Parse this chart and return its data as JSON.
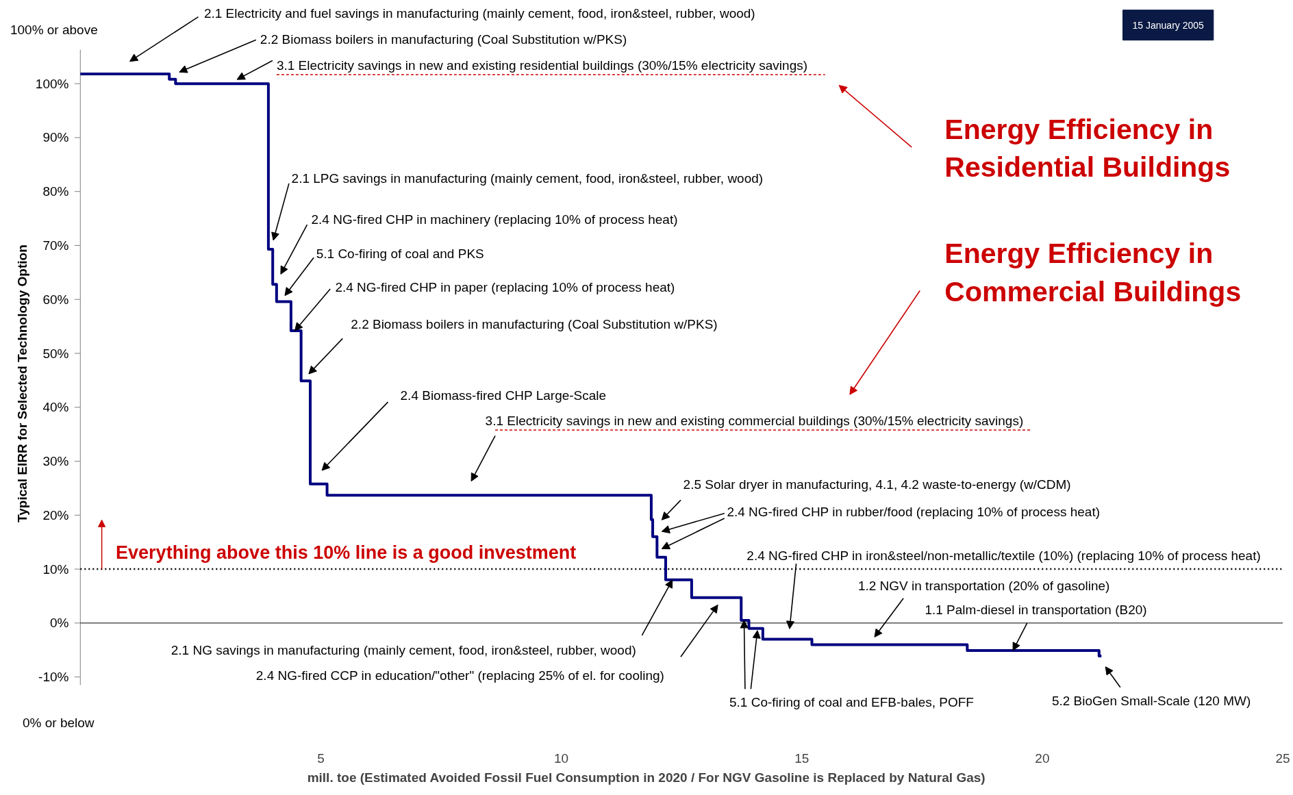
{
  "chart_data": {
    "type": "step",
    "xlabel": "mill. toe (Estimated Avoided Fossil Fuel Consumption in 2020 / For NGV Gasoline is Replaced by Natural Gas)",
    "ylabel": "Typical EIRR for Selected Technology Option",
    "x": [
      0,
      1.85,
      1.98,
      3.91,
      4.0,
      4.08,
      4.38,
      4.59,
      4.78,
      5.13,
      11.87,
      11.9,
      11.99,
      12.17,
      12.71,
      13.74,
      13.9,
      14.19,
      15.21,
      18.44,
      21.18,
      21.23
    ],
    "series": [
      {
        "color": "#000080",
        "values": [
          101.8,
          100.8,
          100,
          69.3,
          62.8,
          59.6,
          54.2,
          44.9,
          25.8,
          23.7,
          19.2,
          16.0,
          12.2,
          8.0,
          4.7,
          0.5,
          -1.0,
          -3.0,
          -4.0,
          -5.1,
          -6.1,
          -6.1
        ]
      }
    ],
    "xlim": [
      0,
      25
    ],
    "ylim": [
      -11.5,
      106.3
    ],
    "xticks": [
      5,
      10,
      15,
      20,
      25
    ],
    "yticks": [
      {
        "value": -10,
        "label": "-10%"
      },
      {
        "value": 0,
        "label": "0%"
      },
      {
        "value": 10,
        "label": "10%"
      },
      {
        "value": 20,
        "label": "20%"
      },
      {
        "value": 30,
        "label": "30%"
      },
      {
        "value": 40,
        "label": "40%"
      },
      {
        "value": 50,
        "label": "50%"
      },
      {
        "value": 60,
        "label": "60%"
      },
      {
        "value": 70,
        "label": "70%"
      },
      {
        "value": 80,
        "label": "80%"
      },
      {
        "value": 90,
        "label": "90%"
      },
      {
        "value": 100,
        "label": "100%"
      }
    ],
    "grid": false,
    "ref_lines": [
      {
        "axis": "y",
        "value": 0,
        "color": "#000000",
        "line_style": "solid"
      },
      {
        "axis": "y",
        "value": 10,
        "color": "#000000",
        "line_style": "dotted",
        "label": "Everything above this 10% line is a good investment"
      }
    ],
    "annotations": [
      "2.1 Electricity and fuel savings in manufacturing (mainly cement, food, iron&steel, rubber, wood)",
      "2.2 Biomass boilers in manufacturing (Coal Substitution w/PKS)",
      "3.1 Electricity savings in new and existing residential buildings (30%/15% electricity savings)",
      "2.1 LPG savings in manufacturing (mainly cement, food, iron&steel, rubber, wood)",
      "2.4 NG-fired CHP in machinery (replacing 10% of process heat)",
      "5.1 Co-firing of coal and PKS",
      {
        "text": "2.4 NG-fired CHP in paper (replacing 10% of process heat)",
        "x": 4.46,
        "y": 54.2
      },
      "2.2 Biomass boilers in manufacturing (Coal Substitution w/PKS)",
      "2.4 Biomass-fired CHP Large-Scale",
      "3.1 Electricity savings in new and existing commercial buildings (30%/15% electricity savings)",
      "2.5 Solar dryer in manufacturing, 4.1, 4.2 waste-to-energy (w/CDM)",
      "2.4 NG-fired CHP in rubber/food (replacing 10% of process heat)",
      "2.4 NG-fired CHP in iron&steel/non-metallic/textile (10%) (replacing 10% of process heat)",
      "1.2 NGV in transportation (20% of gasoline)",
      {
        "text": "1.1 Palm-diesel in transportation (B20)",
        "x": 19.39,
        "y": -5.1
      },
      {
        "text": "2.1 NG savings in manufacturing (mainly cement, food, iron&steel, rubber, wood)",
        "x": 12.31,
        "y": 8.0
      },
      "2.4 NG-fired CCP in education/\"other\" (replacing 25% of el. for cooling)",
      {
        "text": "5.1 Co-firing of coal and EFB-bales, POFF",
        "x": 13.8,
        "y": 0.5
      },
      "5.2 BioGen Small-Scale (120 MW)",
      "Energy Efficiency in\nResidential Buildings",
      "Energy Efficiency in\nCommercial Buildings",
      "100% or above",
      "0% or below",
      "15 January 2005"
    ]
  }
}
